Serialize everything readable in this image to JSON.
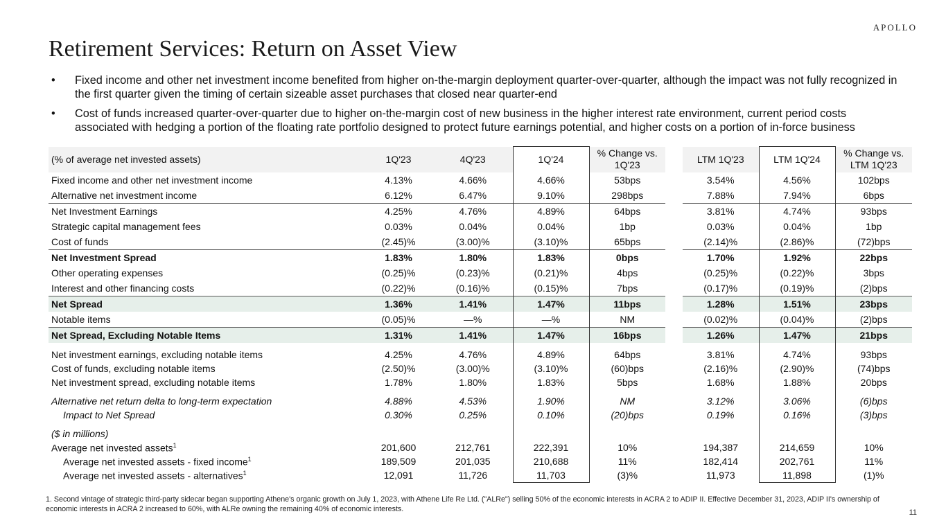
{
  "logo": "APOLLO",
  "title": "Retirement Services: Return on Asset View",
  "bullets": [
    "Fixed income and other net investment income benefited from higher on-the-margin deployment quarter-over-quarter, although the impact was not fully recognized in the first quarter given the timing of certain sizeable asset purchases that closed near quarter-end",
    "Cost of funds increased quarter-over-quarter due to higher on-the-margin cost of new business in the higher interest rate environment, current period costs associated with hedging a portion of the floating rate portfolio designed to protect future earnings potential, and higher costs on a portion of in-force business"
  ],
  "table": {
    "header": [
      "(% of average net invested assets)",
      "1Q'23",
      "4Q'23",
      "1Q'24",
      "% Change vs. 1Q'23",
      "LTM 1Q'23",
      "LTM 1Q'24",
      "% Change vs. LTM 1Q'23"
    ],
    "rows": [
      {
        "label": "Fixed income and other net investment income",
        "values": [
          "4.13%",
          "4.66%",
          "4.66%",
          "53bps",
          "3.54%",
          "4.56%",
          "102bps"
        ]
      },
      {
        "label": "Alternative net investment income",
        "values": [
          "6.12%",
          "6.47%",
          "9.10%",
          "298bps",
          "7.88%",
          "7.94%",
          "6bps"
        ]
      },
      {
        "label": "Net Investment Earnings",
        "values": [
          "4.25%",
          "4.76%",
          "4.89%",
          "64bps",
          "3.81%",
          "4.74%",
          "93bps"
        ],
        "rule": true
      },
      {
        "label": "Strategic capital management fees",
        "values": [
          "0.03%",
          "0.04%",
          "0.04%",
          "1bp",
          "0.03%",
          "0.04%",
          "1bp"
        ]
      },
      {
        "label": "Cost of funds",
        "values": [
          "(2.45)%",
          "(3.00)%",
          "(3.10)%",
          "65bps",
          "(2.14)%",
          "(2.86)%",
          "(72)bps"
        ]
      },
      {
        "label": "Net Investment Spread",
        "values": [
          "1.83%",
          "1.80%",
          "1.83%",
          "0bps",
          "1.70%",
          "1.92%",
          "22bps"
        ],
        "bold": true,
        "rule": true
      },
      {
        "label": "Other operating expenses",
        "values": [
          "(0.25)%",
          "(0.23)%",
          "(0.21)%",
          "4bps",
          "(0.25)%",
          "(0.22)%",
          "3bps"
        ]
      },
      {
        "label": "Interest and other financing costs",
        "values": [
          "(0.22)%",
          "(0.16)%",
          "(0.15)%",
          "7bps",
          "(0.17)%",
          "(0.19)%",
          "(2)bps"
        ]
      },
      {
        "label": "Net Spread",
        "values": [
          "1.36%",
          "1.41%",
          "1.47%",
          "11bps",
          "1.28%",
          "1.51%",
          "23bps"
        ],
        "bold": true,
        "shaded": true,
        "rule": true
      },
      {
        "label": "Notable items",
        "values": [
          "(0.05)%",
          "—%",
          "—%",
          "NM",
          "(0.02)%",
          "(0.04)%",
          "(2)bps"
        ]
      },
      {
        "label": "Net Spread, Excluding Notable Items",
        "values": [
          "1.31%",
          "1.41%",
          "1.47%",
          "16bps",
          "1.26%",
          "1.47%",
          "21bps"
        ],
        "bold": true,
        "shaded": true,
        "rule": true
      },
      {
        "label": "Net investment earnings, excluding notable items",
        "values": [
          "4.25%",
          "4.76%",
          "4.89%",
          "64bps",
          "3.81%",
          "4.74%",
          "93bps"
        ],
        "gap_before": true
      },
      {
        "label": "Cost of funds, excluding notable items",
        "values": [
          "(2.50)%",
          "(3.00)%",
          "(3.10)%",
          "(60)bps",
          "(2.16)%",
          "(2.90)%",
          "(74)bps"
        ]
      },
      {
        "label": "Net investment spread, excluding notable items",
        "values": [
          "1.78%",
          "1.80%",
          "1.83%",
          "5bps",
          "1.68%",
          "1.88%",
          "20bps"
        ]
      },
      {
        "label": "Alternative net return delta to long-term expectation",
        "values": [
          "4.88%",
          "4.53%",
          "1.90%",
          "NM",
          "3.12%",
          "3.06%",
          "(6)bps"
        ],
        "italic": true,
        "gap_before": true
      },
      {
        "label": "Impact to Net Spread",
        "values": [
          "0.30%",
          "0.25%",
          "0.10%",
          "(20)bps",
          "0.19%",
          "0.16%",
          "(3)bps"
        ],
        "italic": true,
        "indent": true
      },
      {
        "label": "($ in millions)",
        "italic": true,
        "gap_before": true
      },
      {
        "label": "Average net invested assets",
        "note": "1",
        "values": [
          "201,600",
          "212,761",
          "222,391",
          "10%",
          "194,387",
          "214,659",
          "10%"
        ]
      },
      {
        "label": "Average net invested assets - fixed income",
        "note": "1",
        "values": [
          "189,509",
          "201,035",
          "210,688",
          "11%",
          "182,414",
          "202,761",
          "11%"
        ],
        "indent": true
      },
      {
        "label": "Average net invested assets - alternatives",
        "note": "1",
        "values": [
          "12,091",
          "11,726",
          "11,703",
          "(3)%",
          "11,973",
          "11,898",
          "(1)%"
        ],
        "indent": true
      }
    ]
  },
  "footnote": "1. Second vintage of strategic third-party sidecar began supporting Athene's organic growth on July 1, 2023, with Athene Life Re Ltd. (\"ALRe\") selling 50% of the economic interests in ACRA 2 to ADIP II. Effective December 31, 2023, ADIP II's ownership of economic interests in ACRA 2 increased to 60%, with ALRe owning the remaining 40% of economic interests.",
  "page_number": "11"
}
